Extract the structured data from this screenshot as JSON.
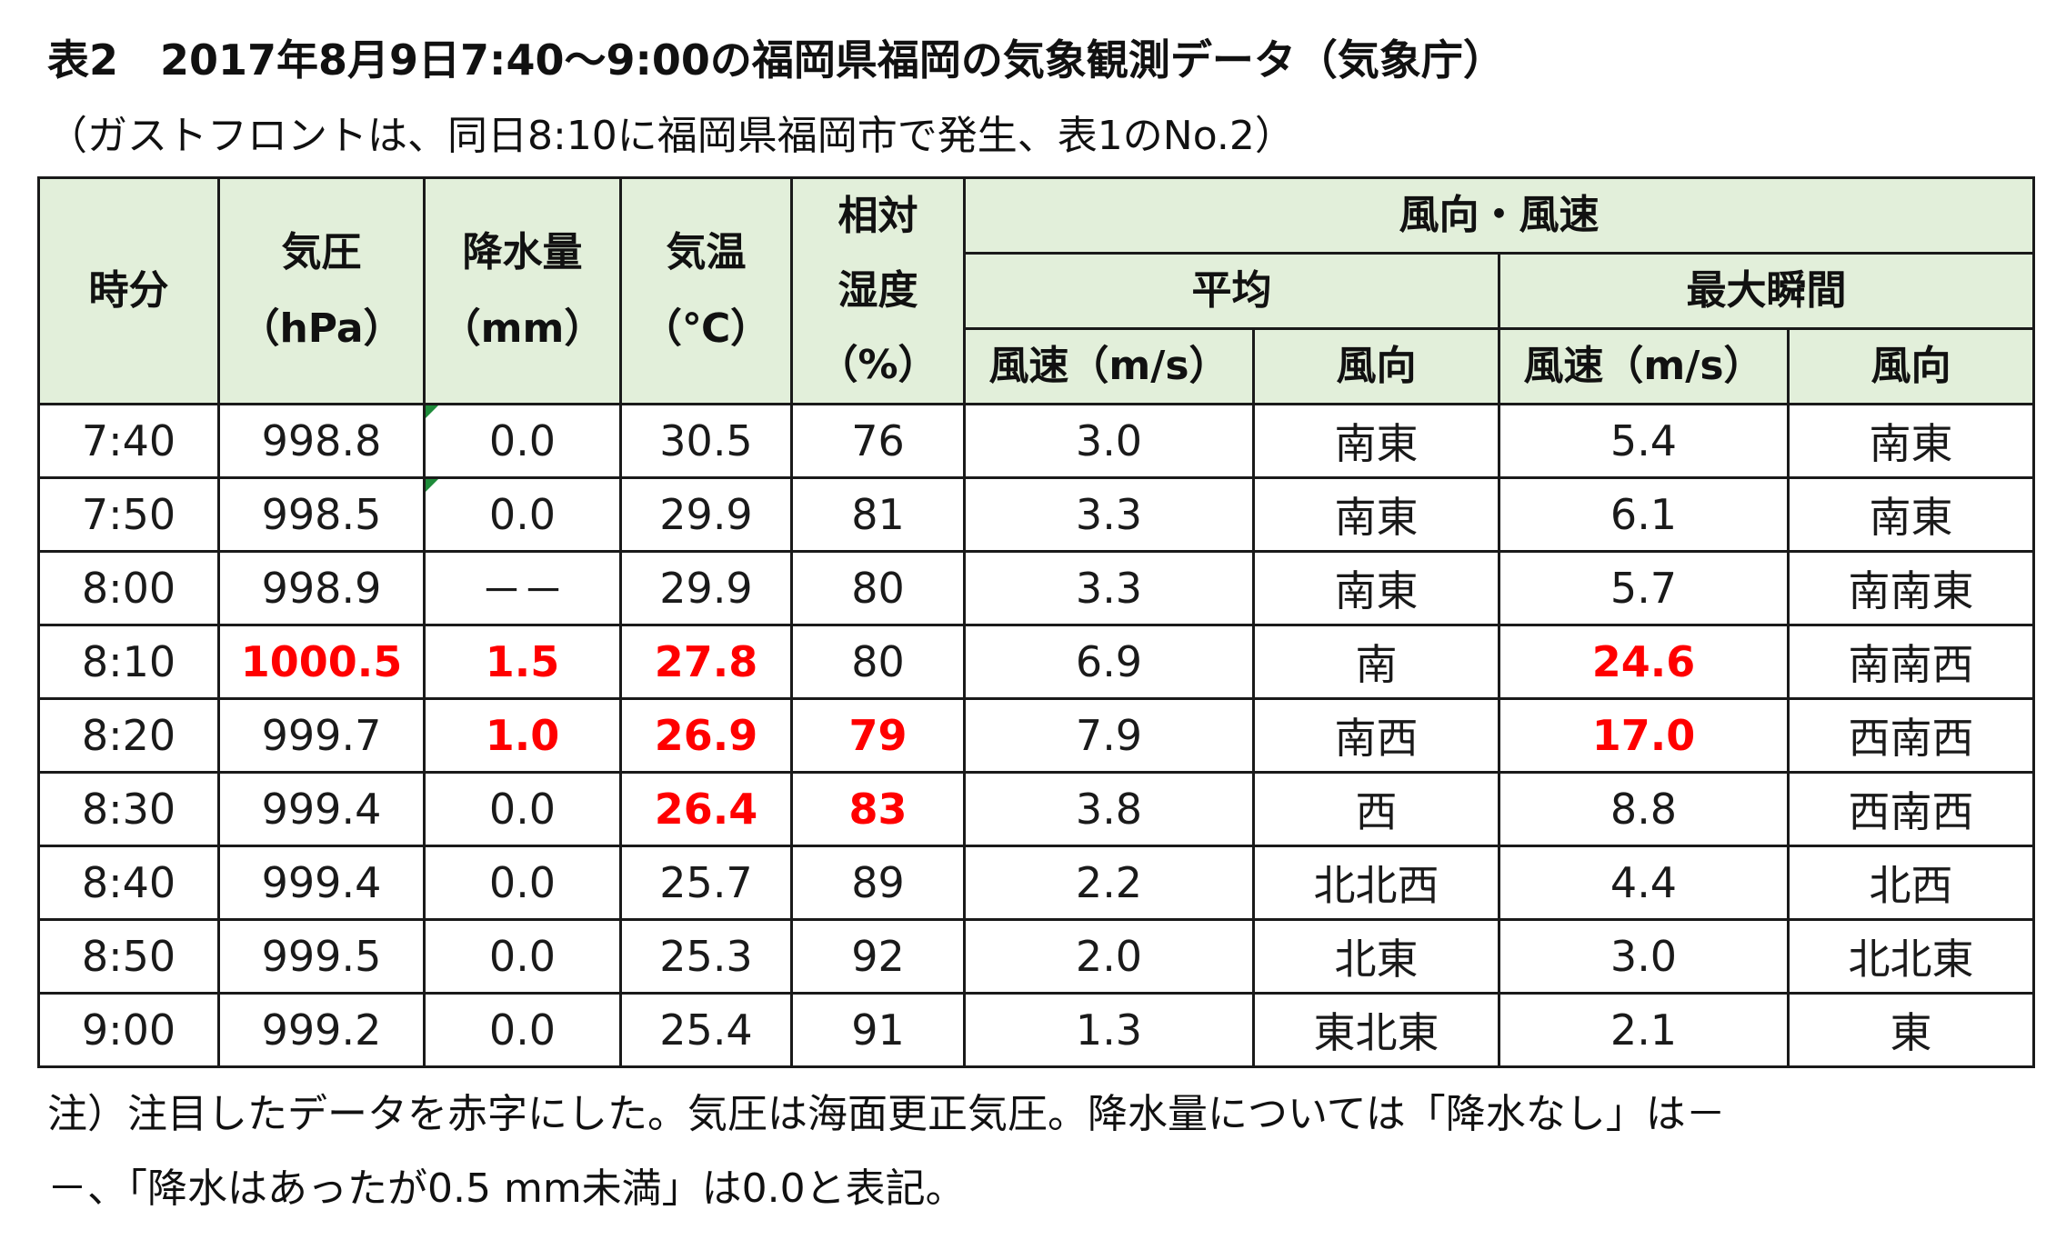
{
  "title": "表2　2017年8月9日7:40～9:00の福岡県福岡の気象観測データ（気象庁）",
  "subtitle": "（ガストフロントは、同日8:10に福岡県福岡市で発生、表1のNo.2）",
  "header": {
    "time": "時分",
    "pressure_l1": "気圧",
    "pressure_l2": "（hPa）",
    "precip_l1": "降水量",
    "precip_l2": "（mm）",
    "temp_l1": "気温",
    "temp_l2": "（℃）",
    "humidity_l1": "相対",
    "humidity_l2": "湿度",
    "humidity_l3": "（%）",
    "wind_group": "風向・風速",
    "avg_group": "平均",
    "max_group": "最大瞬間",
    "avg_speed": "風速（m/s）",
    "avg_dir": "風向",
    "max_speed": "風速（m/s）",
    "max_dir": "風向"
  },
  "rows": [
    {
      "time": "7:40",
      "pressure": "998.8",
      "precip": "0.0",
      "temp": "30.5",
      "humidity": "76",
      "avg_speed": "3.0",
      "avg_dir": "南東",
      "max_speed": "5.4",
      "max_dir": "南東"
    },
    {
      "time": "7:50",
      "pressure": "998.5",
      "precip": "0.0",
      "temp": "29.9",
      "humidity": "81",
      "avg_speed": "3.3",
      "avg_dir": "南東",
      "max_speed": "6.1",
      "max_dir": "南東"
    },
    {
      "time": "8:00",
      "pressure": "998.9",
      "precip": "－－",
      "temp": "29.9",
      "humidity": "80",
      "avg_speed": "3.3",
      "avg_dir": "南東",
      "max_speed": "5.7",
      "max_dir": "南南東"
    },
    {
      "time": "8:10",
      "pressure": "1000.5",
      "precip": "1.5",
      "temp": "27.8",
      "humidity": "80",
      "avg_speed": "6.9",
      "avg_dir": "南",
      "max_speed": "24.6",
      "max_dir": "南南西"
    },
    {
      "time": "8:20",
      "pressure": "999.7",
      "precip": "1.0",
      "temp": "26.9",
      "humidity": "79",
      "avg_speed": "7.9",
      "avg_dir": "南西",
      "max_speed": "17.0",
      "max_dir": "西南西"
    },
    {
      "time": "8:30",
      "pressure": "999.4",
      "precip": "0.0",
      "temp": "26.4",
      "humidity": "83",
      "avg_speed": "3.8",
      "avg_dir": "西",
      "max_speed": "8.8",
      "max_dir": "西南西"
    },
    {
      "time": "8:40",
      "pressure": "999.4",
      "precip": "0.0",
      "temp": "25.7",
      "humidity": "89",
      "avg_speed": "2.2",
      "avg_dir": "北北西",
      "max_speed": "4.4",
      "max_dir": "北西"
    },
    {
      "time": "8:50",
      "pressure": "999.5",
      "precip": "0.0",
      "temp": "25.3",
      "humidity": "92",
      "avg_speed": "2.0",
      "avg_dir": "北東",
      "max_speed": "3.0",
      "max_dir": "北北東"
    },
    {
      "time": "9:00",
      "pressure": "999.2",
      "precip": "0.0",
      "temp": "25.4",
      "humidity": "91",
      "avg_speed": "1.3",
      "avg_dir": "東北東",
      "max_speed": "2.1",
      "max_dir": "東"
    }
  ],
  "highlighted_cells": {
    "3": [
      "pressure",
      "precip",
      "temp",
      "max_speed"
    ],
    "4": [
      "precip",
      "temp",
      "humidity",
      "max_speed"
    ],
    "5": [
      "temp",
      "humidity"
    ]
  },
  "highlight_color": "#ff0000",
  "header_bg_color": "#e2efda",
  "note": {
    "line1": "注）注目したデータを赤字にした。気圧は海面更正気圧。降水量については「降水なし」は－",
    "line2": "－、「降水はあったが0.5 mm未満」は0.0と表記。"
  }
}
